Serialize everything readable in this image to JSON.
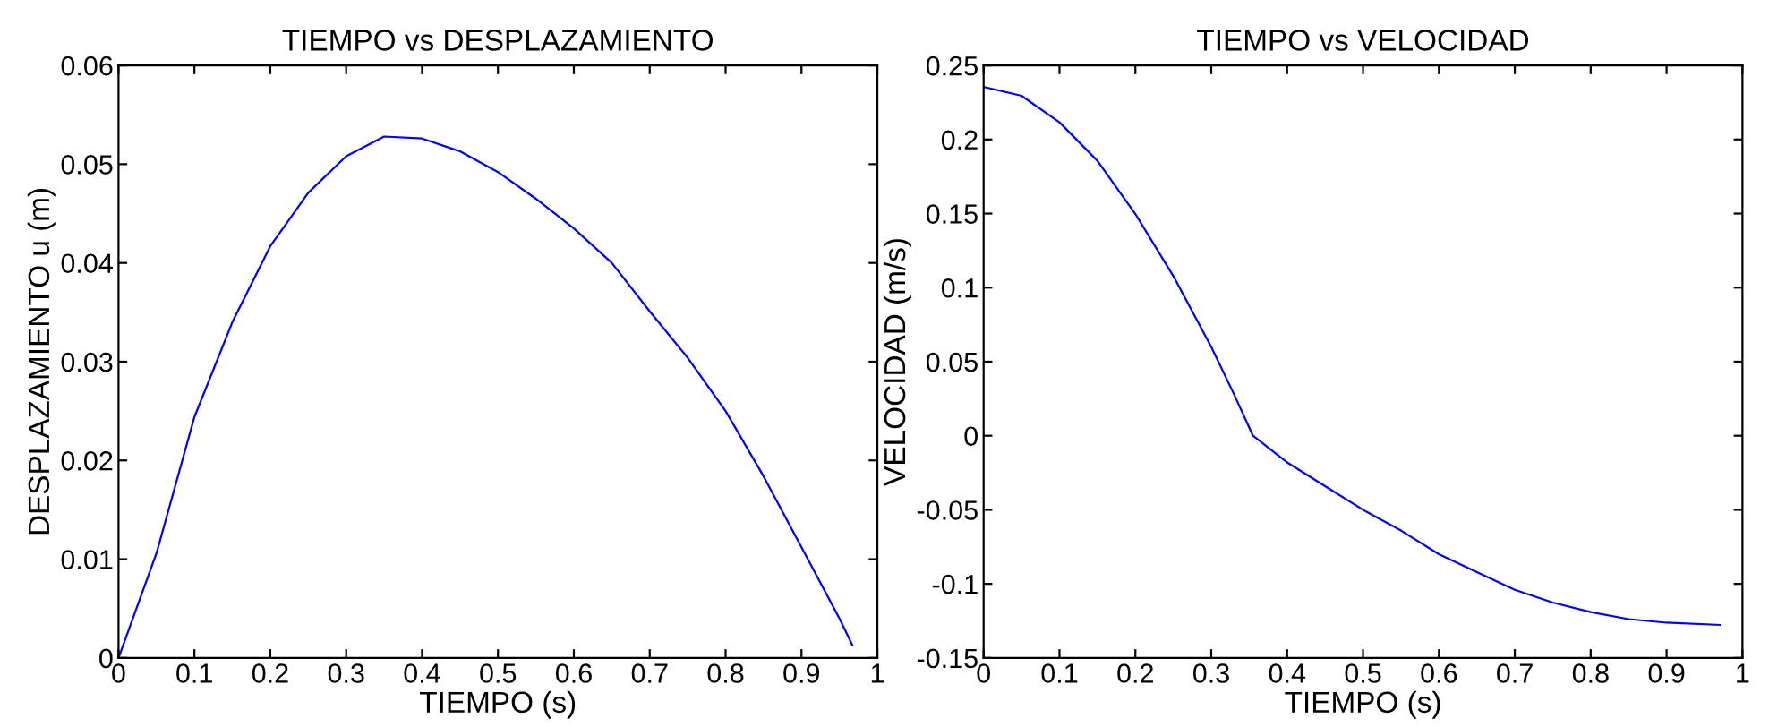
{
  "chart_data": [
    {
      "type": "line",
      "title": "TIEMPO vs DESPLAZAMIENTO",
      "xlabel": "TIEMPO (s)",
      "ylabel": "DESPLAZAMIENTO u (m)",
      "x": [
        0,
        0.05,
        0.1,
        0.15,
        0.2,
        0.25,
        0.3,
        0.35,
        0.4,
        0.45,
        0.5,
        0.55,
        0.6,
        0.65,
        0.7,
        0.75,
        0.8,
        0.85,
        0.9,
        0.95,
        0.967
      ],
      "series": [
        {
          "color": "#0000ff",
          "values": [
            0,
            0.0106,
            0.0244,
            0.034,
            0.0417,
            0.0471,
            0.0508,
            0.0528,
            0.0526,
            0.0513,
            0.0492,
            0.0465,
            0.0435,
            0.04,
            0.0351,
            0.0304,
            0.025,
            0.0184,
            0.0112,
            0.004,
            0.0013
          ]
        }
      ],
      "xlim": [
        0,
        1
      ],
      "ylim": [
        0,
        0.06
      ],
      "xticks": [
        0,
        0.1,
        0.2,
        0.3,
        0.4,
        0.5,
        0.6,
        0.7,
        0.8,
        0.9,
        1
      ],
      "yticks": [
        0,
        0.01,
        0.02,
        0.03,
        0.04,
        0.05,
        0.06
      ],
      "grid": false,
      "legend": false,
      "line_style": "solid",
      "marker": "none"
    },
    {
      "type": "line",
      "title": "TIEMPO vs VELOCIDAD",
      "xlabel": "TIEMPO (s)",
      "ylabel": "VELOCIDAD (m/s)",
      "x": [
        0,
        0.05,
        0.1,
        0.15,
        0.2,
        0.25,
        0.3,
        0.33,
        0.355,
        0.4,
        0.45,
        0.5,
        0.55,
        0.6,
        0.65,
        0.7,
        0.75,
        0.8,
        0.85,
        0.9,
        0.97
      ],
      "series": [
        {
          "color": "#0000ff",
          "values": [
            0.2355,
            0.2295,
            0.2116,
            0.1856,
            0.1497,
            0.1078,
            0.0599,
            0.028,
            0,
            -0.018,
            -0.034,
            -0.05,
            -0.064,
            -0.08,
            -0.092,
            -0.104,
            -0.1126,
            -0.119,
            -0.1238,
            -0.1262,
            -0.1277
          ]
        }
      ],
      "xlim": [
        0,
        1
      ],
      "ylim": [
        -0.15,
        0.25
      ],
      "xticks": [
        0,
        0.1,
        0.2,
        0.3,
        0.4,
        0.5,
        0.6,
        0.7,
        0.8,
        0.9,
        1
      ],
      "yticks": [
        -0.15,
        -0.1,
        -0.05,
        0,
        0.05,
        0.1,
        0.15,
        0.2,
        0.25
      ],
      "grid": false,
      "legend": false,
      "line_style": "solid",
      "marker": "none"
    }
  ]
}
